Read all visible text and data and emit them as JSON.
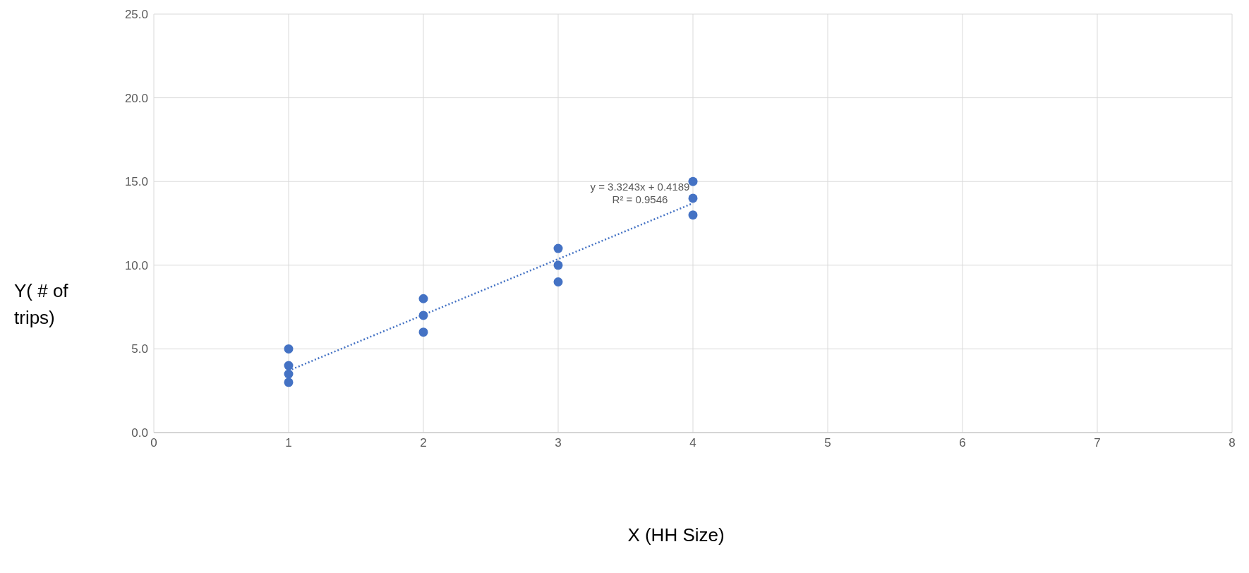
{
  "chart_data": {
    "type": "scatter",
    "xlabel": "X (HH Size)",
    "ylabel": "Y( # of trips)",
    "series": [
      {
        "color": "#4472c4",
        "marker": "circle",
        "x": [
          1,
          1,
          1,
          1,
          2,
          2,
          2,
          3,
          3,
          3,
          4,
          4,
          4
        ],
        "values": [
          5,
          4,
          3.5,
          3,
          8,
          7,
          6,
          11,
          10,
          9,
          15,
          14,
          13
        ]
      },
      {
        "type": "line",
        "color": "#4472c4",
        "line_style": "dotted",
        "marker": "none",
        "x": [
          1,
          4
        ],
        "values": [
          3.7,
          13.7
        ]
      }
    ],
    "xlim": [
      0,
      8
    ],
    "xticks": [
      0,
      1,
      2,
      3,
      4,
      5,
      6,
      7,
      8
    ],
    "ylim": [
      0,
      25
    ],
    "yticks": [
      {
        "value": 0,
        "label": "0.0"
      },
      {
        "value": 5,
        "label": "5.0"
      },
      {
        "value": 10,
        "label": "10.0"
      },
      {
        "value": 15,
        "label": "15.0"
      },
      {
        "value": 20,
        "label": "20.0"
      },
      {
        "value": 25,
        "label": "25.0"
      }
    ],
    "grid": true,
    "annotations": [
      "y = 3.3243x + 0.4189",
      "R² = 0.9546"
    ]
  }
}
